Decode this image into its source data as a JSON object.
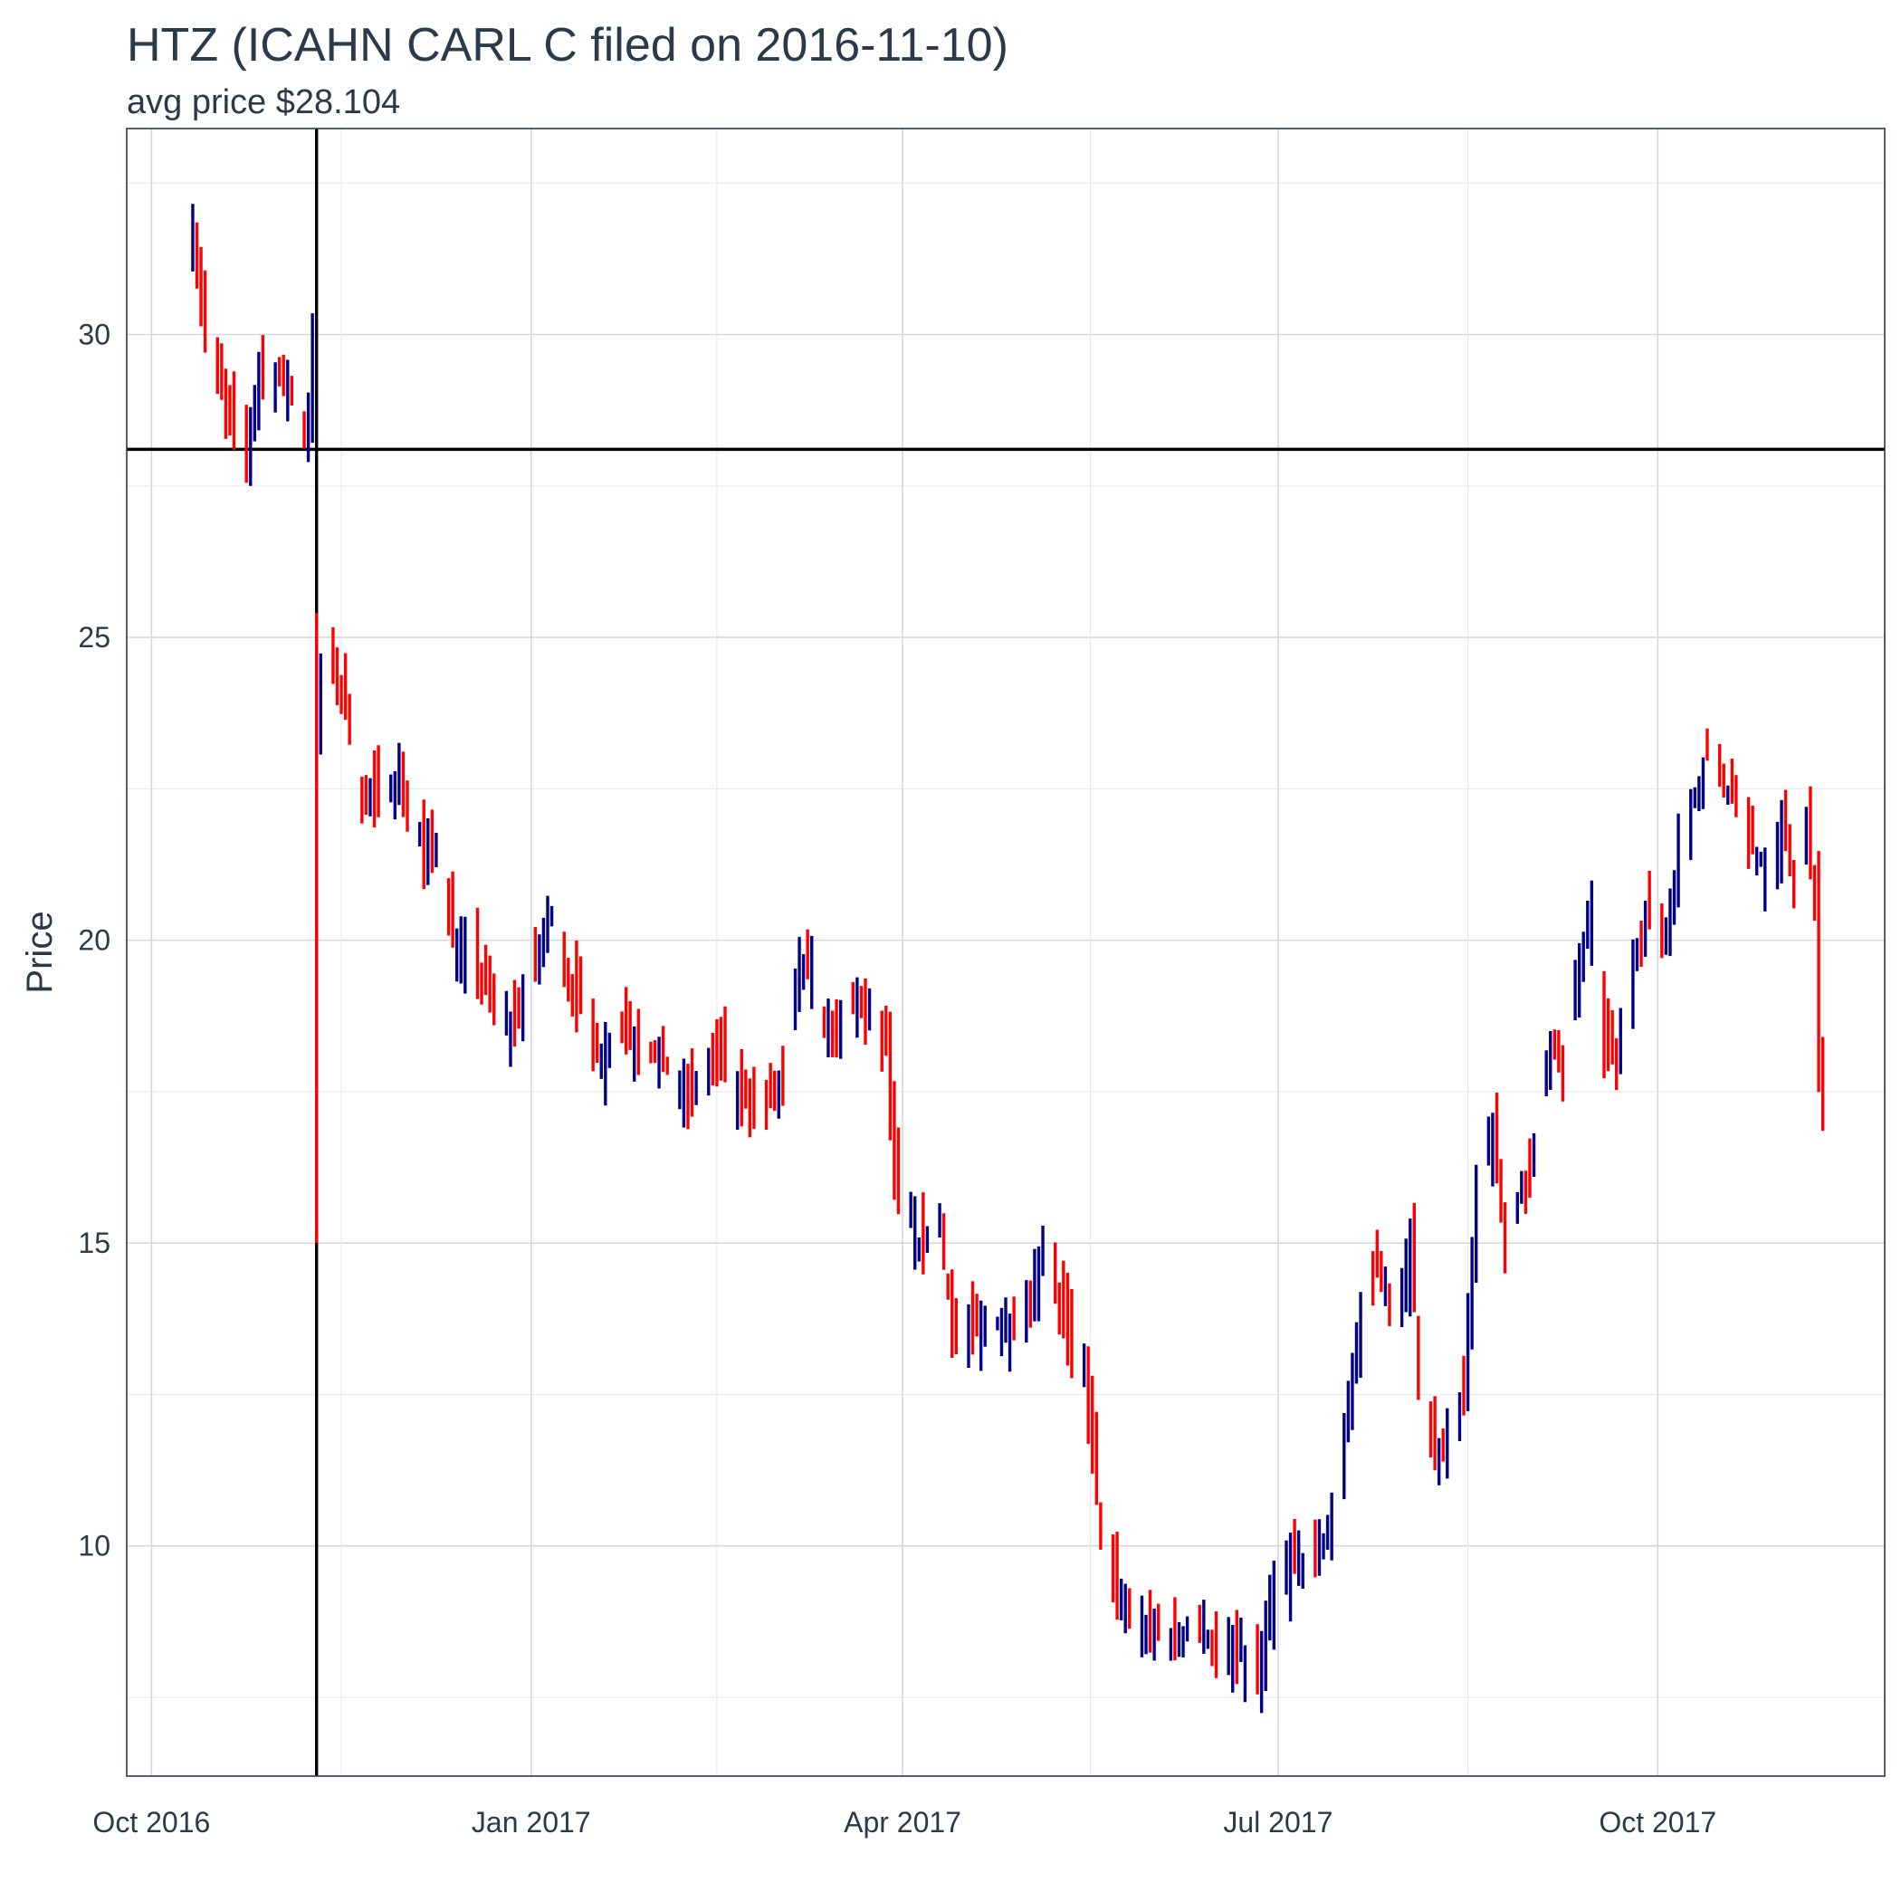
{
  "chart_data": {
    "type": "bar",
    "mark": "ohlc",
    "title": "HTZ (ICAHN CARL C filed on 2016-11-10)",
    "subtitle": "avg price $28.104",
    "ylabel": "Price",
    "xlabel": "",
    "xlim": [
      "2016-09-25",
      "2017-11-25"
    ],
    "ylim": [
      6.2,
      33.4
    ],
    "x_ticks": [
      {
        "date": "2016-10-01",
        "label": "Oct 2016"
      },
      {
        "date": "2017-01-01",
        "label": "Jan 2017"
      },
      {
        "date": "2017-04-01",
        "label": "Apr 2017"
      },
      {
        "date": "2017-07-01",
        "label": "Jul 2017"
      },
      {
        "date": "2017-10-01",
        "label": "Oct 2017"
      }
    ],
    "y_ticks": [
      10,
      15,
      20,
      25,
      30
    ],
    "reference_lines": {
      "vertical_date": "2016-11-10",
      "horizontal_price": 28.104
    },
    "colors": {
      "up": "#00008b",
      "down": "#ff0000",
      "reference": "#000000",
      "text": "#2b3a4a",
      "frame": "#2b3a4a",
      "grid": "#d4d7dc"
    },
    "grid": true,
    "legend": "none",
    "waypoints": [
      [
        "2016-10-11",
        31.6
      ],
      [
        "2016-10-14",
        30.1
      ],
      [
        "2016-10-18",
        29.0
      ],
      [
        "2016-10-21",
        28.5
      ],
      [
        "2016-10-24",
        28.1
      ],
      [
        "2016-10-27",
        29.5
      ],
      [
        "2016-11-01",
        29.3
      ],
      [
        "2016-11-04",
        29.1
      ],
      [
        "2016-11-07",
        28.4
      ],
      [
        "2016-11-08",
        28.7
      ],
      [
        "2016-11-09",
        29.8
      ],
      [
        "2016-11-10",
        23.3
      ],
      [
        "2016-11-11",
        24.4
      ],
      [
        "2016-11-14",
        24.5
      ],
      [
        "2016-11-18",
        23.5
      ],
      [
        "2016-11-22",
        22.2
      ],
      [
        "2016-11-25",
        22.5
      ],
      [
        "2016-11-30",
        22.8
      ],
      [
        "2016-12-06",
        21.4
      ],
      [
        "2016-12-09",
        21.6
      ],
      [
        "2016-12-13",
        20.2
      ],
      [
        "2016-12-19",
        19.5
      ],
      [
        "2016-12-27",
        18.6
      ],
      [
        "2017-01-03",
        19.8
      ],
      [
        "2017-01-06",
        20.5
      ],
      [
        "2017-01-10",
        19.4
      ],
      [
        "2017-01-17",
        18.1
      ],
      [
        "2017-01-23",
        18.6
      ],
      [
        "2017-02-01",
        18.0
      ],
      [
        "2017-02-08",
        17.4
      ],
      [
        "2017-02-15",
        18.1
      ],
      [
        "2017-02-23",
        17.3
      ],
      [
        "2017-03-03",
        17.5
      ],
      [
        "2017-03-07",
        19.5
      ],
      [
        "2017-03-10",
        19.5
      ],
      [
        "2017-03-15",
        18.3
      ],
      [
        "2017-03-21",
        19.0
      ],
      [
        "2017-03-28",
        18.2
      ],
      [
        "2017-03-30",
        16.2
      ],
      [
        "2017-04-05",
        15.0
      ],
      [
        "2017-04-10",
        15.3
      ],
      [
        "2017-04-13",
        13.6
      ],
      [
        "2017-04-20",
        13.6
      ],
      [
        "2017-04-26",
        13.7
      ],
      [
        "2017-05-02",
        14.2
      ],
      [
        "2017-05-05",
        15.1
      ],
      [
        "2017-05-08",
        14.3
      ],
      [
        "2017-05-12",
        13.2
      ],
      [
        "2017-05-15",
        12.9
      ],
      [
        "2017-05-17",
        11.5
      ],
      [
        "2017-05-19",
        10.0
      ],
      [
        "2017-05-24",
        9.1
      ],
      [
        "2017-05-31",
        8.6
      ],
      [
        "2017-06-07",
        8.5
      ],
      [
        "2017-06-12",
        8.7
      ],
      [
        "2017-06-16",
        8.3
      ],
      [
        "2017-06-21",
        8.3
      ],
      [
        "2017-06-26",
        7.9
      ],
      [
        "2017-06-30",
        9.3
      ],
      [
        "2017-07-05",
        9.9
      ],
      [
        "2017-07-10",
        9.7
      ],
      [
        "2017-07-14",
        10.4
      ],
      [
        "2017-07-18",
        12.5
      ],
      [
        "2017-07-21",
        13.8
      ],
      [
        "2017-07-25",
        14.7
      ],
      [
        "2017-07-28",
        13.8
      ],
      [
        "2017-08-02",
        14.9
      ],
      [
        "2017-08-04",
        13.0
      ],
      [
        "2017-08-07",
        11.8
      ],
      [
        "2017-08-10",
        11.6
      ],
      [
        "2017-08-15",
        12.6
      ],
      [
        "2017-08-18",
        15.7
      ],
      [
        "2017-08-22",
        17.0
      ],
      [
        "2017-08-25",
        15.0
      ],
      [
        "2017-08-29",
        15.9
      ],
      [
        "2017-09-01",
        16.3
      ],
      [
        "2017-09-05",
        18.4
      ],
      [
        "2017-09-08",
        17.8
      ],
      [
        "2017-09-12",
        19.6
      ],
      [
        "2017-09-15",
        20.4
      ],
      [
        "2017-09-18",
        18.3
      ],
      [
        "2017-09-21",
        18.0
      ],
      [
        "2017-09-25",
        19.8
      ],
      [
        "2017-09-28",
        20.3
      ],
      [
        "2017-10-03",
        20.1
      ],
      [
        "2017-10-06",
        21.6
      ],
      [
        "2017-10-10",
        22.4
      ],
      [
        "2017-10-13",
        23.1
      ],
      [
        "2017-10-18",
        22.5
      ],
      [
        "2017-10-23",
        21.6
      ],
      [
        "2017-10-27",
        21.2
      ],
      [
        "2017-11-01",
        21.9
      ],
      [
        "2017-11-03",
        20.8
      ],
      [
        "2017-11-06",
        21.8
      ],
      [
        "2017-11-08",
        20.9
      ],
      [
        "2017-11-09",
        18.0
      ],
      [
        "2017-11-10",
        17.1
      ]
    ]
  }
}
